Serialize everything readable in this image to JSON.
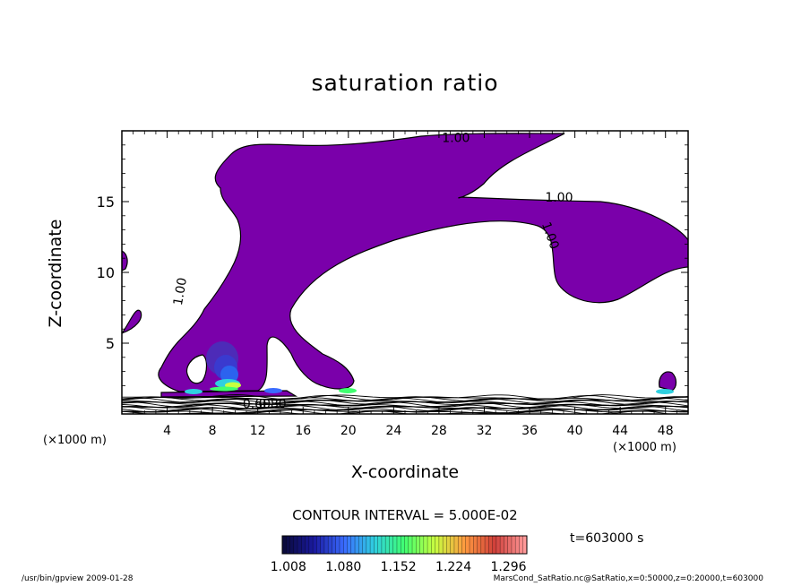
{
  "chart_data": {
    "type": "contour",
    "title": "saturation ratio",
    "xlabel": "X-coordinate",
    "ylabel": "Z-coordinate",
    "x_unit": "(×1000 m)",
    "x_unit_right": "(×1000 m)",
    "xlim": [
      0,
      50
    ],
    "ylim": [
      0,
      20
    ],
    "x_ticks": [
      "4",
      "8",
      "12",
      "16",
      "20",
      "24",
      "28",
      "32",
      "36",
      "40",
      "44",
      "48"
    ],
    "x_tick_values": [
      4,
      8,
      12,
      16,
      20,
      24,
      28,
      32,
      36,
      40,
      44,
      48
    ],
    "y_ticks": [
      "5",
      "10",
      "15"
    ],
    "y_tick_values": [
      5,
      10,
      15
    ],
    "contour_labels": [
      {
        "text": "1.00",
        "x": 29.5,
        "y": 19.2
      },
      {
        "text": "1.00",
        "x": 38.6,
        "y": 15.0
      },
      {
        "text": "1.00",
        "x": 37.5,
        "y": 12.5
      },
      {
        "text": "1.00",
        "x": 5.5,
        "y": 8.6
      },
      {
        "text": "0.80",
        "x": 13.3,
        "y": 0.4
      },
      {
        "text": "0.60",
        "x": 11.9,
        "y": 0.4
      }
    ],
    "contour_interval_text": "CONTOUR INTERVAL = 5.000E-02",
    "colorbar": {
      "ticks": [
        "1.008",
        "1.080",
        "1.152",
        "1.224",
        "1.296"
      ],
      "tick_values": [
        1.008,
        1.08,
        1.152,
        1.224,
        1.296
      ],
      "range": [
        1.0,
        1.32
      ],
      "colors": [
        "#0a0a3c",
        "#1a1aa0",
        "#3a6cff",
        "#2fd0e0",
        "#40ff70",
        "#c8ff40",
        "#ff9a40",
        "#d0403a",
        "#ff9999"
      ]
    },
    "fill_color": "#7a00aa",
    "time_label": "t=603000 s"
  },
  "footer": {
    "left": "/usr/bin/gpview  2009-01-28",
    "right": "MarsCond_SatRatio.nc@SatRatio,x=0:50000,z=0:20000,t=603000"
  }
}
